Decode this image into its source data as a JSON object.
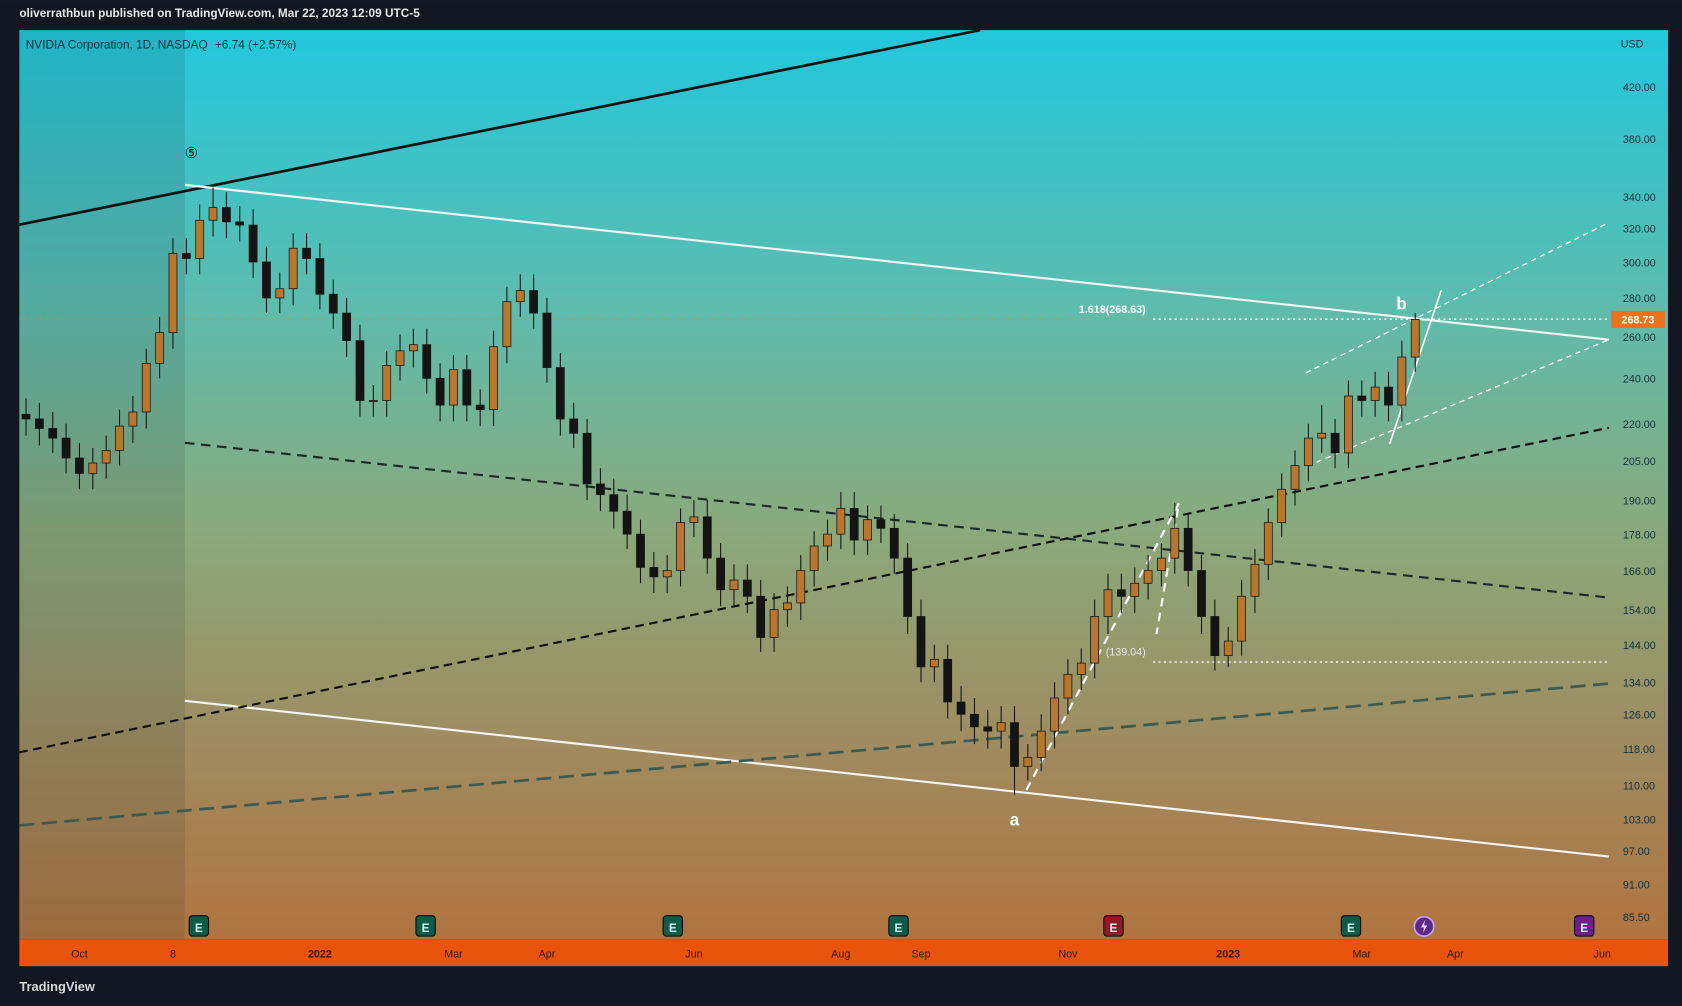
{
  "header": {
    "published": "oliverrathbun published on TradingView.com, Mar 22, 2023 12:09 UTC-5",
    "symbol": "NVIDIA Corporation, 1D, NASDAQ",
    "change": "+6.74 (+2.57%)",
    "currency": "USD"
  },
  "footer": {
    "brand": "TradingView"
  },
  "chart_data": {
    "type": "candlestick",
    "log_scale": true,
    "grid": false,
    "up_color": "#b8762e",
    "down_color": "#141414",
    "last_price": 268.73,
    "last_price_color": "#f2711c",
    "annotations": {
      "wave_5": "⑤",
      "wave_b": "b",
      "wave_a": "a",
      "fib_upper": "1.618(268.63)",
      "fib_lower": "(139.04)"
    },
    "events": [
      {
        "label": "E",
        "color": "#0f5a48"
      },
      {
        "label": "E",
        "color": "#0f5a48"
      },
      {
        "label": "E",
        "color": "#0f5a48"
      },
      {
        "label": "E",
        "color": "#0f5a48"
      },
      {
        "label": "E",
        "color": "#8c1c2b"
      },
      {
        "label": "E",
        "color": "#0f5a48"
      },
      {
        "color": "#5a2a86"
      },
      {
        "label": "E",
        "color": "#6a1f8a"
      }
    ],
    "categories": [
      null,
      null,
      null,
      null,
      "Oct",
      null,
      null,
      null,
      null,
      null,
      null,
      "8",
      null,
      null,
      null,
      null,
      null,
      null,
      null,
      null,
      null,
      null,
      "2022",
      null,
      null,
      null,
      null,
      null,
      null,
      null,
      null,
      null,
      "Mar",
      null,
      null,
      null,
      null,
      null,
      null,
      "Apr",
      null,
      null,
      null,
      null,
      null,
      null,
      null,
      null,
      null,
      null,
      "Jun",
      null,
      null,
      null,
      null,
      null,
      null,
      null,
      null,
      null,
      null,
      "Aug",
      null,
      null,
      null,
      null,
      null,
      "Sep",
      null,
      null,
      null,
      null,
      null,
      null,
      null,
      null,
      null,
      null,
      "Nov",
      null,
      null,
      null,
      null,
      null,
      null,
      null,
      null,
      null,
      null,
      null,
      "2023",
      null,
      null,
      null,
      null,
      null,
      null,
      null,
      null,
      null,
      "Mar",
      null,
      null,
      null,
      null,
      null,
      null,
      "Apr",
      null,
      null,
      null,
      null,
      null,
      null,
      null,
      null,
      null,
      null,
      "Jun"
    ],
    "open": [
      224,
      222,
      218,
      214,
      206,
      200,
      204,
      209,
      219,
      225,
      247,
      262,
      305,
      302,
      325,
      333,
      324,
      322,
      300,
      280,
      285,
      308,
      302,
      282,
      272,
      258,
      230,
      230,
      246,
      253,
      256,
      240,
      228,
      244,
      228,
      226,
      255,
      278,
      284,
      272,
      245,
      222,
      216,
      196,
      192,
      186,
      178,
      167,
      164,
      166,
      182,
      184,
      170,
      160,
      163,
      158,
      146,
      154,
      156,
      166,
      174,
      178,
      187,
      176,
      183,
      180,
      170,
      152,
      138,
      140,
      129,
      126,
      123,
      122,
      124,
      114,
      116,
      122,
      130,
      136,
      139,
      152,
      160,
      158,
      162,
      166,
      170,
      180,
      166,
      152,
      141,
      145,
      158,
      168,
      182,
      194,
      203,
      214,
      216,
      208,
      232,
      230,
      236,
      228,
      250,
      null,
      null,
      null,
      null,
      null,
      null,
      null,
      null,
      null,
      null,
      null,
      null,
      null,
      null
    ],
    "high": [
      231,
      229,
      225,
      220,
      212,
      210,
      215,
      226,
      232,
      254,
      270,
      314,
      314,
      335,
      346,
      343,
      334,
      332,
      309,
      294,
      317,
      317,
      311,
      290,
      280,
      266,
      237,
      253,
      261,
      264,
      264,
      247,
      251,
      251,
      235,
      263,
      286,
      293,
      293,
      280,
      252,
      229,
      222,
      202,
      198,
      192,
      183,
      172,
      171,
      187,
      190,
      190,
      175,
      168,
      168,
      163,
      159,
      161,
      171,
      179,
      183,
      193,
      193,
      188,
      188,
      185,
      175,
      157,
      144,
      144,
      133,
      130,
      127,
      128,
      128,
      119,
      126,
      134,
      140,
      143,
      157,
      165,
      165,
      167,
      171,
      175,
      189,
      185,
      171,
      157,
      149,
      163,
      173,
      187,
      200,
      209,
      220,
      228,
      222,
      239,
      239,
      243,
      243,
      258,
      272,
      null,
      null,
      null,
      null,
      null,
      null,
      null,
      null,
      null,
      null,
      null,
      null,
      null,
      null
    ],
    "low": [
      215,
      211,
      208,
      200,
      194,
      194,
      198,
      203,
      212,
      218,
      240,
      254,
      293,
      293,
      315,
      314,
      312,
      291,
      272,
      272,
      276,
      293,
      274,
      264,
      250,
      223,
      223,
      223,
      239,
      245,
      233,
      221,
      221,
      221,
      219,
      219,
      247,
      270,
      264,
      238,
      215,
      210,
      190,
      186,
      180,
      173,
      162,
      159,
      159,
      161,
      177,
      165,
      155,
      155,
      153,
      142,
      142,
      149,
      151,
      161,
      169,
      173,
      171,
      171,
      175,
      165,
      147,
      134,
      134,
      125,
      122,
      119,
      118,
      118,
      108,
      111,
      113,
      118,
      126,
      132,
      135,
      147,
      153,
      153,
      157,
      161,
      165,
      161,
      147,
      137,
      138,
      141,
      153,
      163,
      177,
      188,
      197,
      208,
      202,
      202,
      223,
      223,
      221,
      221,
      243,
      null,
      null,
      null,
      null,
      null,
      null,
      null,
      null,
      null,
      null,
      null,
      null,
      null,
      null
    ],
    "close": [
      222,
      218,
      214,
      206,
      200,
      204,
      209,
      219,
      225,
      247,
      262,
      305,
      302,
      325,
      333,
      324,
      322,
      300,
      280,
      285,
      308,
      302,
      282,
      272,
      258,
      230,
      230,
      246,
      253,
      256,
      240,
      228,
      244,
      228,
      226,
      255,
      278,
      284,
      272,
      245,
      222,
      216,
      196,
      192,
      186,
      178,
      167,
      164,
      166,
      182,
      184,
      170,
      160,
      163,
      158,
      146,
      154,
      156,
      166,
      174,
      178,
      187,
      176,
      183,
      180,
      170,
      152,
      138,
      140,
      129,
      126,
      123,
      122,
      124,
      114,
      116,
      122,
      130,
      136,
      139,
      152,
      160,
      158,
      162,
      166,
      170,
      180,
      166,
      152,
      141,
      145,
      158,
      168,
      182,
      194,
      203,
      214,
      216,
      208,
      232,
      230,
      236,
      228,
      250,
      268.73,
      null,
      null,
      null,
      null,
      null,
      null,
      null,
      null,
      null,
      null,
      null,
      null,
      null,
      null
    ],
    "ylim": [
      82,
      468
    ],
    "yticks": [
      {
        "value": 420,
        "label": "420.00"
      },
      {
        "value": 380,
        "label": "380.00"
      },
      {
        "value": 340,
        "label": "340.00"
      },
      {
        "value": 320,
        "label": "320.00"
      },
      {
        "value": 300,
        "label": "300.00"
      },
      {
        "value": 280,
        "label": "280.00"
      },
      {
        "value": 260,
        "label": "260.00"
      },
      {
        "value": 240,
        "label": "240.00"
      },
      {
        "value": 220,
        "label": "220.00"
      },
      {
        "value": 205,
        "label": "205.00"
      },
      {
        "value": 190,
        "label": "190.00"
      },
      {
        "value": 178,
        "label": "178.00"
      },
      {
        "value": 166,
        "label": "166.00"
      },
      {
        "value": 154,
        "label": "154.00"
      },
      {
        "value": 144,
        "label": "144.00"
      },
      {
        "value": 134,
        "label": "134.00"
      },
      {
        "value": 126,
        "label": "126.00"
      },
      {
        "value": 118,
        "label": "118.00"
      },
      {
        "value": 110,
        "label": "110.00"
      },
      {
        "value": 103,
        "label": "103.00"
      },
      {
        "value": 97,
        "label": "97.00"
      },
      {
        "value": 91,
        "label": "91.00"
      },
      {
        "value": 85.5,
        "label": "85.50"
      }
    ]
  }
}
